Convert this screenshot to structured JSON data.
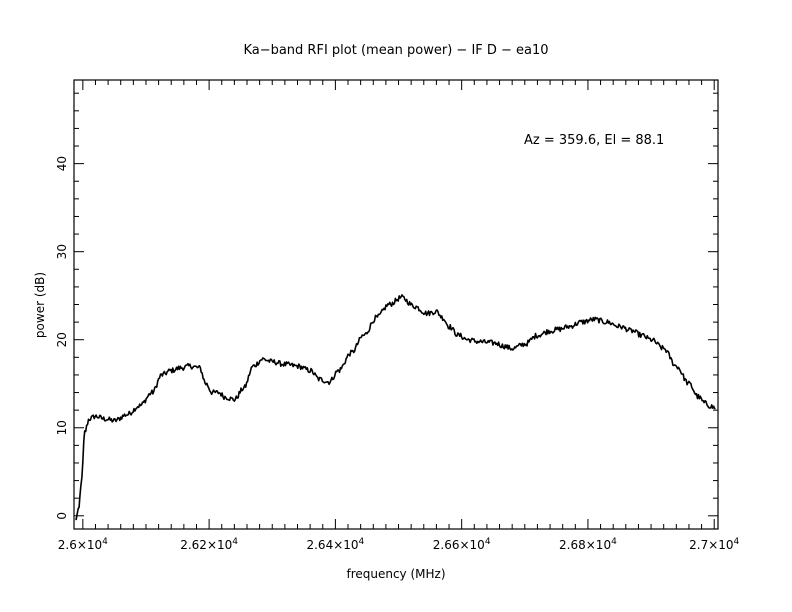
{
  "chart_data": {
    "type": "line",
    "title": "Ka−band RFI plot (mean power) − IF D − ea10",
    "xlabel": "frequency (MHz)",
    "ylabel": "power (dB)",
    "annotation": "Az = 359.6, El = 88.1",
    "xlim": [
      25986,
      27006
    ],
    "ylim": [
      -1.5,
      49.5
    ],
    "x_ticks": [
      {
        "value": 26000,
        "mantissa": "2.6",
        "exponent": "4"
      },
      {
        "value": 26200,
        "mantissa": "2.62",
        "exponent": "4"
      },
      {
        "value": 26400,
        "mantissa": "2.64",
        "exponent": "4"
      },
      {
        "value": 26600,
        "mantissa": "2.66",
        "exponent": "4"
      },
      {
        "value": 26800,
        "mantissa": "2.68",
        "exponent": "4"
      },
      {
        "value": 27000,
        "mantissa": "2.7",
        "exponent": "4"
      }
    ],
    "x_times_sign": "×10",
    "y_ticks": [
      {
        "value": 0,
        "label": "0"
      },
      {
        "value": 10,
        "label": "10"
      },
      {
        "value": 20,
        "label": "20"
      },
      {
        "value": 30,
        "label": "30"
      },
      {
        "value": 40,
        "label": "40"
      }
    ],
    "series_color": "#000000",
    "series": [
      {
        "x": [
          25988,
          25993,
          25998,
          26003,
          26010,
          26020,
          26035,
          26050,
          26070,
          26090,
          26110,
          26125,
          26140,
          26155,
          26170,
          26185,
          26195,
          26205,
          26215,
          26225,
          26240,
          26255,
          26270,
          26285,
          26300,
          26320,
          26340,
          26360,
          26375,
          26390,
          26405,
          26425,
          26445,
          26465,
          26485,
          26505,
          26525,
          26545,
          26560,
          26570,
          26580,
          26595,
          26610,
          26625,
          26640,
          26655,
          26665,
          26680,
          26700,
          26720,
          26740,
          26755,
          26770,
          26790,
          26810,
          26830,
          26850,
          26870,
          26885,
          26900,
          26920,
          26940,
          26960,
          26975,
          26985,
          26993,
          27000,
          27003
        ],
        "y": [
          -0.5,
          0.5,
          4.0,
          9.5,
          11.0,
          11.3,
          11.0,
          10.8,
          11.5,
          12.5,
          14.0,
          16.0,
          16.5,
          16.8,
          17.0,
          16.8,
          15.0,
          14.0,
          14.0,
          13.5,
          13.2,
          14.5,
          17.0,
          17.8,
          17.5,
          17.2,
          17.0,
          16.5,
          15.5,
          15.2,
          16.5,
          18.5,
          20.5,
          22.5,
          24.0,
          24.8,
          23.8,
          23.0,
          23.2,
          22.5,
          21.5,
          20.5,
          20.0,
          19.8,
          19.7,
          19.6,
          19.3,
          19.0,
          19.5,
          20.5,
          21.0,
          21.2,
          21.5,
          22.0,
          22.3,
          22.0,
          21.5,
          21.0,
          20.5,
          20.0,
          19.0,
          17.0,
          15.0,
          13.5,
          12.8,
          12.5,
          12.3,
          12.0
        ]
      }
    ]
  }
}
